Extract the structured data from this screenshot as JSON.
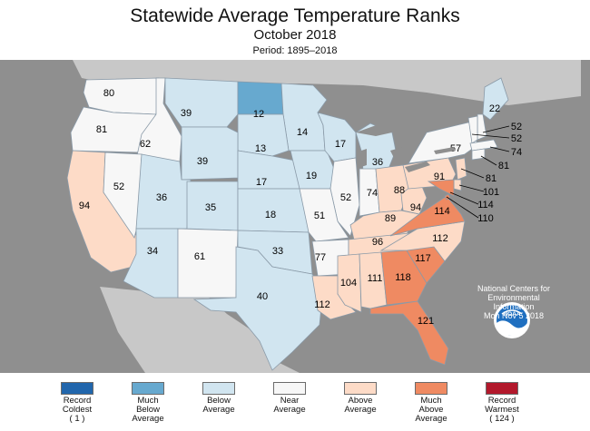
{
  "header": {
    "title": "Statewide Average Temperature Ranks",
    "subtitle": "October 2018",
    "period": "Period: 1895–2018"
  },
  "colors": {
    "background": "#8f8f8f",
    "land_outside": "#c8c8c8",
    "water": "#8f8f8f",
    "border": "#8a9aa8",
    "record_coldest": "#2166ac",
    "much_below": "#67a9cf",
    "below": "#d1e5f0",
    "near": "#f7f7f7",
    "above": "#fddbc7",
    "much_above": "#ef8a62",
    "record_warmest": "#b2182b"
  },
  "legend": [
    {
      "label": "Record\nColdest\n( 1 )",
      "color": "#2166ac"
    },
    {
      "label": "Much\nBelow\nAverage",
      "color": "#67a9cf"
    },
    {
      "label": "Below\nAverage",
      "color": "#d1e5f0"
    },
    {
      "label": "Near\nAverage",
      "color": "#f7f7f7"
    },
    {
      "label": "Above\nAverage",
      "color": "#fddbc7"
    },
    {
      "label": "Much\nAbove\nAverage",
      "color": "#ef8a62"
    },
    {
      "label": "Record\nWarmest\n( 124 )",
      "color": "#b2182b"
    }
  ],
  "states": [
    {
      "state": "Washington",
      "rank": "80",
      "category": "near"
    },
    {
      "state": "Oregon",
      "rank": "81",
      "category": "near"
    },
    {
      "state": "Idaho",
      "rank": "62",
      "category": "near"
    },
    {
      "state": "Montana",
      "rank": "39",
      "category": "below"
    },
    {
      "state": "North Dakota",
      "rank": "12",
      "category": "much_below"
    },
    {
      "state": "Minnesota",
      "rank": "14",
      "category": "below"
    },
    {
      "state": "South Dakota",
      "rank": "13",
      "category": "below"
    },
    {
      "state": "Wyoming",
      "rank": "39",
      "category": "below"
    },
    {
      "state": "California",
      "rank": "94",
      "category": "above"
    },
    {
      "state": "Nevada",
      "rank": "52",
      "category": "near"
    },
    {
      "state": "Utah",
      "rank": "36",
      "category": "below"
    },
    {
      "state": "Colorado",
      "rank": "35",
      "category": "below"
    },
    {
      "state": "Nebraska",
      "rank": "17",
      "category": "below"
    },
    {
      "state": "Kansas",
      "rank": "18",
      "category": "below"
    },
    {
      "state": "Arizona",
      "rank": "34",
      "category": "below"
    },
    {
      "state": "New Mexico",
      "rank": "61",
      "category": "near"
    },
    {
      "state": "Oklahoma",
      "rank": "33",
      "category": "below"
    },
    {
      "state": "Texas",
      "rank": "40",
      "category": "below"
    },
    {
      "state": "Iowa",
      "rank": "19",
      "category": "below"
    },
    {
      "state": "Wisconsin",
      "rank": "17",
      "category": "below"
    },
    {
      "state": "Michigan",
      "rank": "36",
      "category": "below"
    },
    {
      "state": "Illinois",
      "rank": "52",
      "category": "near"
    },
    {
      "state": "Missouri",
      "rank": "51",
      "category": "near"
    },
    {
      "state": "Indiana",
      "rank": "74",
      "category": "near"
    },
    {
      "state": "Ohio",
      "rank": "88",
      "category": "above"
    },
    {
      "state": "Kentucky",
      "rank": "89",
      "category": "above"
    },
    {
      "state": "West Virginia",
      "rank": "94",
      "category": "above"
    },
    {
      "state": "Pennsylvania",
      "rank": "91",
      "category": "above"
    },
    {
      "state": "New York",
      "rank": "57",
      "category": "near"
    },
    {
      "state": "Arkansas",
      "rank": "77",
      "category": "near"
    },
    {
      "state": "Louisiana",
      "rank": "112",
      "category": "above"
    },
    {
      "state": "Tennessee",
      "rank": "96",
      "category": "above"
    },
    {
      "state": "Mississippi",
      "rank": "104",
      "category": "above"
    },
    {
      "state": "Alabama",
      "rank": "111",
      "category": "above"
    },
    {
      "state": "Georgia",
      "rank": "118",
      "category": "much_above"
    },
    {
      "state": "South Carolina",
      "rank": "117",
      "category": "much_above"
    },
    {
      "state": "North Carolina",
      "rank": "112",
      "category": "above"
    },
    {
      "state": "Virginia",
      "rank": "114",
      "category": "much_above"
    },
    {
      "state": "Florida",
      "rank": "121",
      "category": "much_above"
    },
    {
      "state": "Maine",
      "rank": "22",
      "category": "below"
    },
    {
      "state": "New Hampshire",
      "rank": "52",
      "category": "near"
    },
    {
      "state": "Vermont",
      "rank": "52",
      "category": "near"
    },
    {
      "state": "Massachusetts",
      "rank": "74",
      "category": "near"
    },
    {
      "state": "Connecticut",
      "rank": "81",
      "category": "near"
    },
    {
      "state": "New Jersey",
      "rank": "81",
      "category": "above"
    },
    {
      "state": "Delaware",
      "rank": "101",
      "category": "above"
    },
    {
      "state": "Maryland",
      "rank": "114",
      "category": "much_above"
    },
    {
      "state": "District of Columbia",
      "rank": "110",
      "category": "much_above"
    }
  ],
  "attribution": {
    "logo_text": "NOAA",
    "lines": [
      "National Centers for",
      "Environmental",
      "Information",
      "Mon Nov  5 2018"
    ]
  }
}
